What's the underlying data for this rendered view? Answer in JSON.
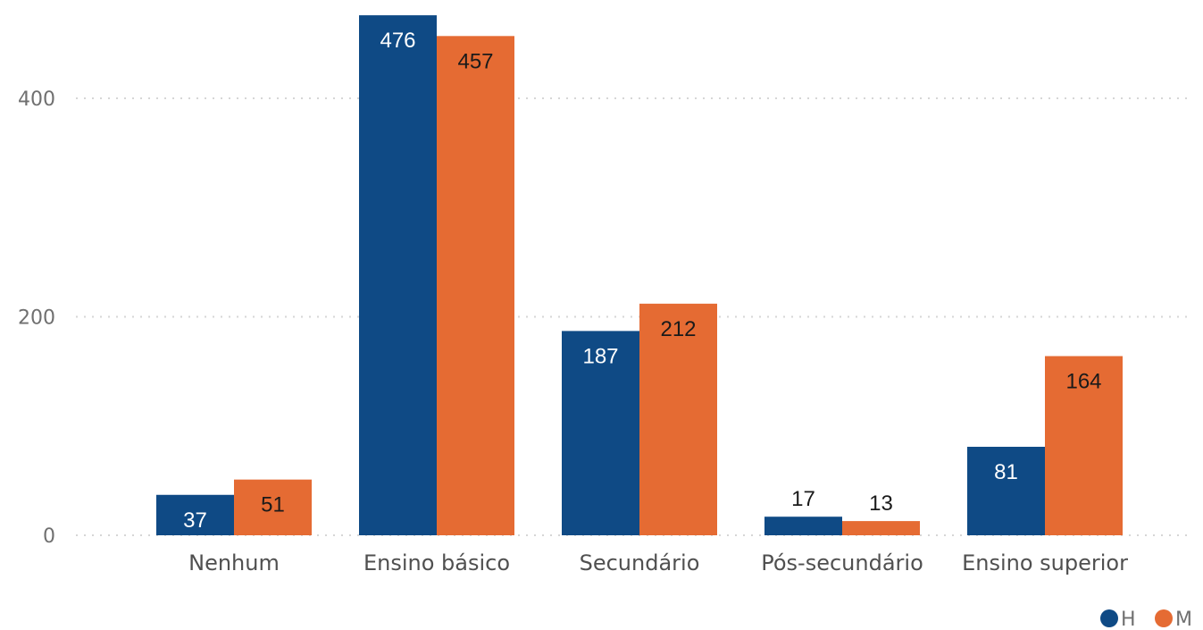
{
  "chart_data": {
    "type": "bar",
    "title": "",
    "xlabel": "",
    "ylabel": "",
    "categories": [
      "Nenhum",
      "Ensino básico",
      "Secundário",
      "Pós-secundário",
      "Ensino superior"
    ],
    "series": [
      {
        "name": "H",
        "color": "#0f4a85",
        "values": [
          37,
          476,
          187,
          17,
          81
        ]
      },
      {
        "name": "M",
        "color": "#e56b33",
        "values": [
          51,
          457,
          212,
          13,
          164
        ]
      }
    ],
    "yticks": [
      0,
      200,
      400
    ],
    "ylim": [
      0,
      480
    ],
    "grid": true,
    "legend_position": "bottom-right"
  }
}
